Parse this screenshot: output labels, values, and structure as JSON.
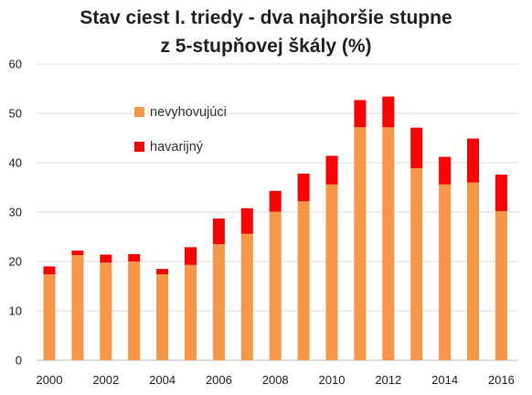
{
  "chart_data": {
    "type": "bar",
    "stacked": true,
    "title_line1": "Stav ciest I. triedy - dva najhoršie stupne",
    "title_line2": "z 5-stupňovej škály (%)",
    "categories": [
      "2000",
      "2001",
      "2002",
      "2003",
      "2004",
      "2005",
      "2006",
      "2007",
      "2008",
      "2009",
      "2010",
      "2011",
      "2012",
      "2013",
      "2014",
      "2015",
      "2016"
    ],
    "x_tick_labels": [
      "2000",
      "2002",
      "2004",
      "2006",
      "2008",
      "2010",
      "2012",
      "2014",
      "2016"
    ],
    "y_ticks": [
      "0",
      "10",
      "20",
      "30",
      "40",
      "50",
      "60"
    ],
    "ylim": [
      0,
      60
    ],
    "grid": true,
    "legend_position": "top-left",
    "series": [
      {
        "name": "nevyhovujúci",
        "color": "#F79646",
        "values": [
          17.4,
          21.3,
          19.8,
          20.0,
          17.4,
          19.3,
          23.5,
          25.6,
          30.1,
          32.2,
          35.6,
          47.2,
          47.2,
          38.9,
          35.6,
          36.0,
          30.2
        ]
      },
      {
        "name": "havarijný",
        "color": "#FF0000",
        "values": [
          1.6,
          0.9,
          1.6,
          1.5,
          1.1,
          3.6,
          5.2,
          5.2,
          4.2,
          5.6,
          5.8,
          5.5,
          6.2,
          8.2,
          5.6,
          8.9,
          7.4
        ]
      }
    ]
  }
}
